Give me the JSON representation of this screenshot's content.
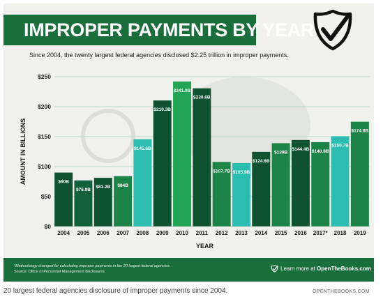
{
  "header": {
    "title": "IMPROPER PAYMENTS BY YEAR",
    "subtitle": "Since 2004, the twenty largest federal agencies disclosed $2.25 trillion in improper payments."
  },
  "chart_data": {
    "type": "bar",
    "title": "IMPROPER PAYMENTS BY YEAR",
    "subtitle": "Since 2004, the twenty largest federal agencies disclosed $2.25 trillion in improper payments.",
    "xlabel": "YEAR",
    "ylabel": "AMOUNT IN BILLIONS",
    "ylim": [
      0,
      250
    ],
    "yticks": [
      0,
      50,
      100,
      150,
      200,
      250
    ],
    "ytick_labels": [
      "$0",
      "$50",
      "$100",
      "$150",
      "$200",
      "$250"
    ],
    "grid": true,
    "categories": [
      "2004",
      "2005",
      "2006",
      "2007",
      "2008",
      "2009",
      "2010",
      "2011",
      "2012",
      "2013",
      "2014",
      "2015",
      "2016",
      "2017*",
      "2018",
      "2019"
    ],
    "values": [
      90,
      76.9,
      81.2,
      84,
      145.6,
      210.3,
      241.9,
      230.6,
      107.7,
      105.9,
      124.6,
      139,
      144.4,
      140.8,
      150.7,
      174.8
    ],
    "data_labels": [
      "$90B",
      "$76.9B",
      "$81.2B",
      "$84B",
      "$145.6B",
      "$210.3B",
      "$241.9B",
      "$230.6B",
      "$107.7B",
      "$105.9B",
      "$124.6B",
      "$139B",
      "$144.4B",
      "$140.8B",
      "$150.7B",
      "$174.8B"
    ],
    "bar_colors": [
      "#0f5230",
      "#12613a",
      "#0f5230",
      "#1c8447",
      "#2bbdb0",
      "#0f5230",
      "#23a356",
      "#0f5230",
      "#1c8447",
      "#2bbdb0",
      "#0f5230",
      "#1c8447",
      "#0f5230",
      "#1c8447",
      "#2bbdb0",
      "#1c8447"
    ]
  },
  "footer": {
    "footnote": "*Methodology changed for calculating improper payments in the 20 largest federal agencies",
    "source": "Source: Office of Personnel Management disclosures",
    "learn_prefix": "Learn more at ",
    "learn_site": "OpenTheBooks.com"
  },
  "caption": {
    "text": "20 largest federal agencies disclosure of improper payments since 2004.",
    "credit": "OPENTHEBOOKS.COM"
  },
  "colors": {
    "brand_green": "#1a6e3c",
    "teal": "#2bbdb0",
    "gridline": "#b9d9c6"
  }
}
